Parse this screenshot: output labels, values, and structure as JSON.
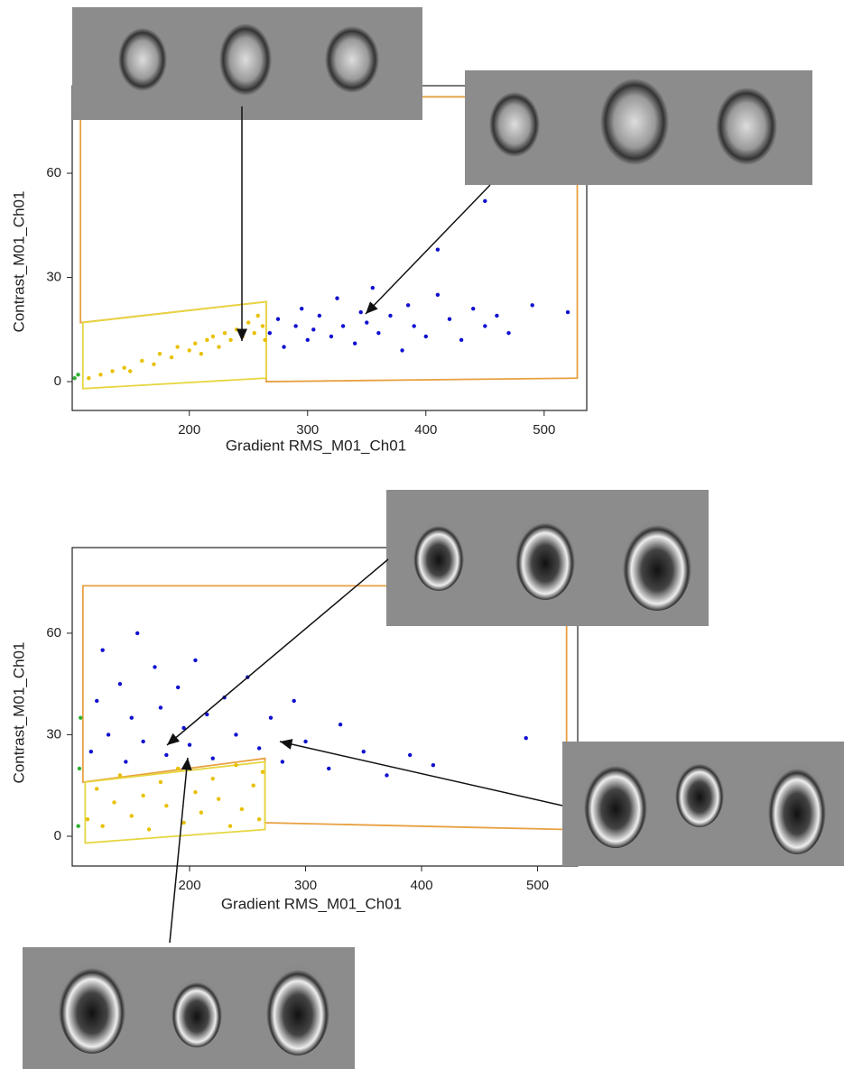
{
  "chart_data": [
    {
      "type": "scatter",
      "x_label": "Gradient RMS_M01_Ch01",
      "y_label": "Contrast_M01_Ch01",
      "xlim": [
        101,
        536
      ],
      "ylim": [
        -8.3,
        85.2
      ],
      "xticks": [
        200,
        300,
        400,
        500
      ],
      "yticks": [
        0,
        30,
        60
      ],
      "gates": [
        {
          "color": "#e8a040",
          "points": [
            [
              108,
              17
            ],
            [
              108,
              82
            ],
            [
              528,
              82
            ],
            [
              528,
              1
            ],
            [
              265,
              0
            ],
            [
              265,
              23
            ]
          ]
        },
        {
          "color": "#e6d640",
          "points": [
            [
              110,
              17
            ],
            [
              265,
              23
            ],
            [
              265,
              1
            ],
            [
              110,
              -2
            ]
          ]
        }
      ],
      "series": [
        {
          "color": "#e8c000",
          "x": [
            115,
            125,
            135,
            145,
            150,
            160,
            170,
            175,
            185,
            190,
            200,
            205,
            210,
            215,
            220,
            225,
            230,
            235,
            240,
            245,
            250,
            255,
            258,
            262,
            264
          ],
          "values": [
            1,
            2,
            3,
            4,
            3,
            6,
            5,
            8,
            7,
            10,
            9,
            11,
            8,
            12,
            13,
            10,
            14,
            12,
            15,
            13,
            17,
            14,
            19,
            16,
            12
          ]
        },
        {
          "color": "#1010d0",
          "x": [
            268,
            275,
            280,
            290,
            295,
            300,
            305,
            310,
            320,
            325,
            330,
            340,
            345,
            350,
            355,
            360,
            370,
            380,
            385,
            390,
            400,
            410,
            420,
            430,
            440,
            450,
            460,
            470,
            490,
            520,
            450,
            410
          ],
          "values": [
            14,
            18,
            10,
            16,
            21,
            12,
            15,
            19,
            13,
            24,
            16,
            11,
            20,
            17,
            27,
            14,
            19,
            9,
            22,
            16,
            13,
            25,
            18,
            12,
            21,
            16,
            19,
            14,
            22,
            20,
            52,
            38
          ]
        },
        {
          "color": "#30b030",
          "x": [
            103,
            106
          ],
          "values": [
            1,
            2
          ]
        }
      ]
    },
    {
      "type": "scatter",
      "x_label": "Gradient RMS_M01_Ch01",
      "y_label": "Contrast_M01_Ch01",
      "xlim": [
        98.8,
        534.6
      ],
      "ylim": [
        -8.8,
        85.3
      ],
      "xticks": [
        200,
        300,
        400,
        500
      ],
      "yticks": [
        0,
        30,
        60
      ],
      "gates": [
        {
          "color": "#e8a040",
          "points": [
            [
              108,
              16
            ],
            [
              108,
              74
            ],
            [
              525,
              74
            ],
            [
              525,
              2
            ],
            [
              265,
              4
            ],
            [
              265,
              23
            ]
          ]
        },
        {
          "color": "#e6d640",
          "points": [
            [
              110,
              16
            ],
            [
              265,
              22
            ],
            [
              265,
              2
            ],
            [
              110,
              -2
            ]
          ]
        }
      ],
      "series": [
        {
          "color": "#e8c000",
          "x": [
            112,
            120,
            125,
            135,
            140,
            150,
            160,
            165,
            175,
            180,
            190,
            195,
            205,
            210,
            220,
            225,
            235,
            240,
            245,
            255,
            260,
            263
          ],
          "values": [
            5,
            14,
            3,
            10,
            18,
            6,
            12,
            2,
            16,
            9,
            20,
            4,
            13,
            7,
            17,
            11,
            3,
            21,
            8,
            15,
            5,
            19
          ]
        },
        {
          "color": "#1010d0",
          "x": [
            115,
            120,
            125,
            130,
            140,
            145,
            150,
            155,
            160,
            170,
            175,
            180,
            190,
            195,
            200,
            205,
            215,
            220,
            230,
            240,
            250,
            260,
            270,
            280,
            290,
            300,
            320,
            330,
            350,
            370,
            390,
            410,
            490
          ],
          "values": [
            25,
            40,
            55,
            30,
            45,
            22,
            35,
            60,
            28,
            50,
            38,
            24,
            44,
            32,
            27,
            52,
            36,
            23,
            41,
            30,
            47,
            26,
            35,
            22,
            40,
            28,
            20,
            33,
            25,
            18,
            24,
            21,
            29
          ]
        },
        {
          "color": "#30b030",
          "x": [
            104,
            105,
            106
          ],
          "values": [
            3,
            20,
            35
          ]
        }
      ]
    }
  ]
}
